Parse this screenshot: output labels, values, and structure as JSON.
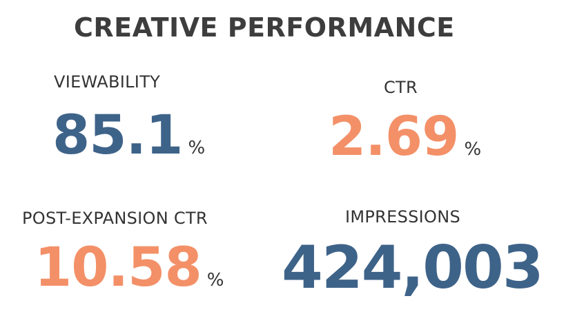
{
  "title": "CREATIVE PERFORMANCE",
  "colors": {
    "blue": "#3e6389",
    "orange": "#f39068",
    "text": "#333333"
  },
  "metrics": {
    "viewability": {
      "label": "VIEWABILITY",
      "value": "85.1",
      "unit": "%"
    },
    "ctr": {
      "label": "CTR",
      "value": "2.69",
      "unit": "%"
    },
    "post_expansion_ctr": {
      "label": "POST-EXPANSION CTR",
      "value": "10.58",
      "unit": "%"
    },
    "impressions": {
      "label": "IMPRESSIONS",
      "value": "424,003"
    }
  }
}
